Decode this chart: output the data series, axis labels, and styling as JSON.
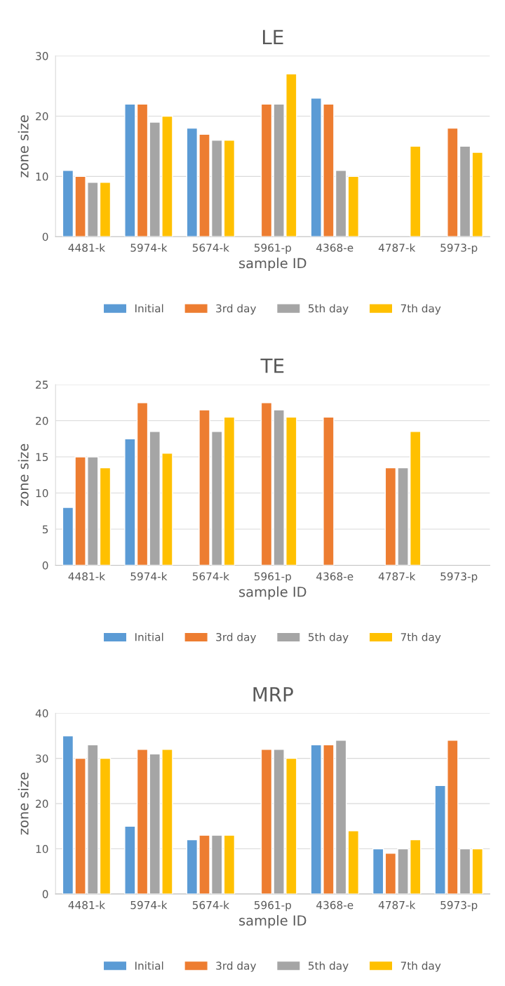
{
  "chart_data": [
    {
      "type": "bar",
      "title": "LE",
      "xlabel": "sample ID",
      "ylabel": "zone size",
      "categories": [
        "4481-k",
        "5974-k",
        "5674-k",
        "5961-p",
        "4368-e",
        "4787-k",
        "5973-p"
      ],
      "ylim": [
        0,
        30
      ],
      "yticks": [
        0,
        10,
        20,
        30
      ],
      "grid": "y",
      "legend": "bottom",
      "series": [
        {
          "name": "Initial",
          "color": "#5b9bd5",
          "values": [
            11,
            22,
            18,
            null,
            23,
            null,
            null
          ]
        },
        {
          "name": "3rd day",
          "color": "#ed7d31",
          "values": [
            10,
            22,
            17,
            22,
            22,
            null,
            18
          ]
        },
        {
          "name": "5th day",
          "color": "#a5a5a5",
          "values": [
            9,
            19,
            16,
            22,
            11,
            null,
            15
          ]
        },
        {
          "name": "7th day",
          "color": "#ffc000",
          "values": [
            9,
            20,
            16,
            27,
            10,
            15,
            14
          ]
        }
      ]
    },
    {
      "type": "bar",
      "title": "TE",
      "xlabel": "sample ID",
      "ylabel": "zone size",
      "categories": [
        "4481-k",
        "5974-k",
        "5674-k",
        "5961-p",
        "4368-e",
        "4787-k",
        "5973-p"
      ],
      "ylim": [
        0,
        25
      ],
      "yticks": [
        0,
        5,
        10,
        15,
        20,
        25
      ],
      "grid": "y",
      "legend": "bottom",
      "series": [
        {
          "name": "Initial",
          "color": "#5b9bd5",
          "values": [
            8,
            17.5,
            null,
            null,
            null,
            null,
            null
          ]
        },
        {
          "name": "3rd day",
          "color": "#ed7d31",
          "values": [
            15,
            22.5,
            21.5,
            22.5,
            20.5,
            13.5,
            null
          ]
        },
        {
          "name": "5th day",
          "color": "#a5a5a5",
          "values": [
            15,
            18.5,
            18.5,
            21.5,
            null,
            13.5,
            null
          ]
        },
        {
          "name": "7th day",
          "color": "#ffc000",
          "values": [
            13.5,
            15.5,
            20.5,
            20.5,
            null,
            18.5,
            null
          ]
        }
      ]
    },
    {
      "type": "bar",
      "title": "MRP",
      "xlabel": "sample ID",
      "ylabel": "zone size",
      "categories": [
        "4481-k",
        "5974-k",
        "5674-k",
        "5961-p",
        "4368-e",
        "4787-k",
        "5973-p"
      ],
      "ylim": [
        0,
        40
      ],
      "yticks": [
        0,
        10,
        20,
        30,
        40
      ],
      "grid": "y",
      "legend": "bottom",
      "series": [
        {
          "name": "Initial",
          "color": "#5b9bd5",
          "values": [
            35,
            15,
            12,
            null,
            33,
            10,
            24
          ]
        },
        {
          "name": "3rd day",
          "color": "#ed7d31",
          "values": [
            30,
            32,
            13,
            32,
            33,
            9,
            34
          ]
        },
        {
          "name": "5th day",
          "color": "#a5a5a5",
          "values": [
            33,
            31,
            13,
            32,
            34,
            10,
            10
          ]
        },
        {
          "name": "7th day",
          "color": "#ffc000",
          "values": [
            30,
            32,
            13,
            30,
            14,
            12,
            10
          ]
        }
      ]
    }
  ]
}
